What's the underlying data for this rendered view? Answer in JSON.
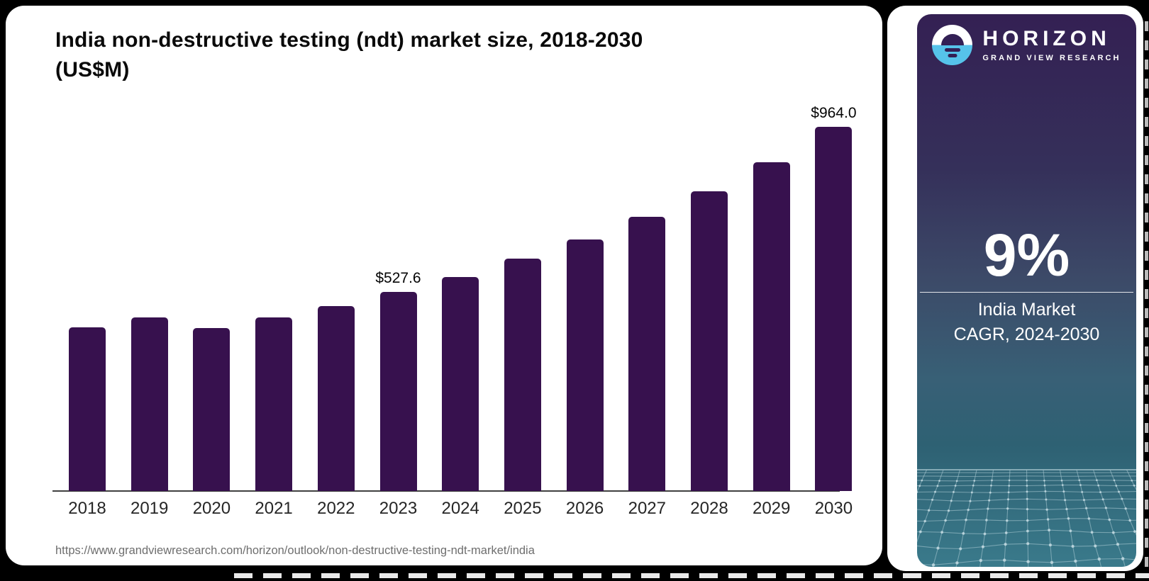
{
  "chart": {
    "title_line1": "India non-destructive testing (ndt) market size, 2018-2030",
    "title_line2": "(US$M)",
    "source_url": "https://www.grandviewresearch.com/horizon/outlook/non-destructive-testing-ndt-market/india"
  },
  "chart_data": {
    "type": "bar",
    "title": "India non-destructive testing (ndt) market size, 2018-2030 (US$M)",
    "unit": "US$M",
    "categories": [
      "2018",
      "2019",
      "2020",
      "2021",
      "2022",
      "2023",
      "2024",
      "2025",
      "2026",
      "2027",
      "2028",
      "2029",
      "2030"
    ],
    "values": [
      433,
      459,
      431,
      459,
      490,
      527.6,
      566,
      615,
      666,
      725,
      794,
      871,
      964
    ],
    "labeled_points": {
      "2023": "$527.6",
      "2030": "$964.0"
    },
    "ylim": [
      0,
      1000
    ],
    "grid": false,
    "legend": false,
    "bar_color": "#37114E",
    "axis_color": "#404040"
  },
  "sidebar": {
    "brand": "HORIZON",
    "brand_sub": "GRAND VIEW RESEARCH",
    "cagr_value": "9%",
    "cagr_label_line1": "India Market",
    "cagr_label_line2": "CAGR, 2024-2030",
    "accent_blue": "#56C3EA",
    "panel_purple": "#342053",
    "panel_teal": "#2E6173"
  }
}
